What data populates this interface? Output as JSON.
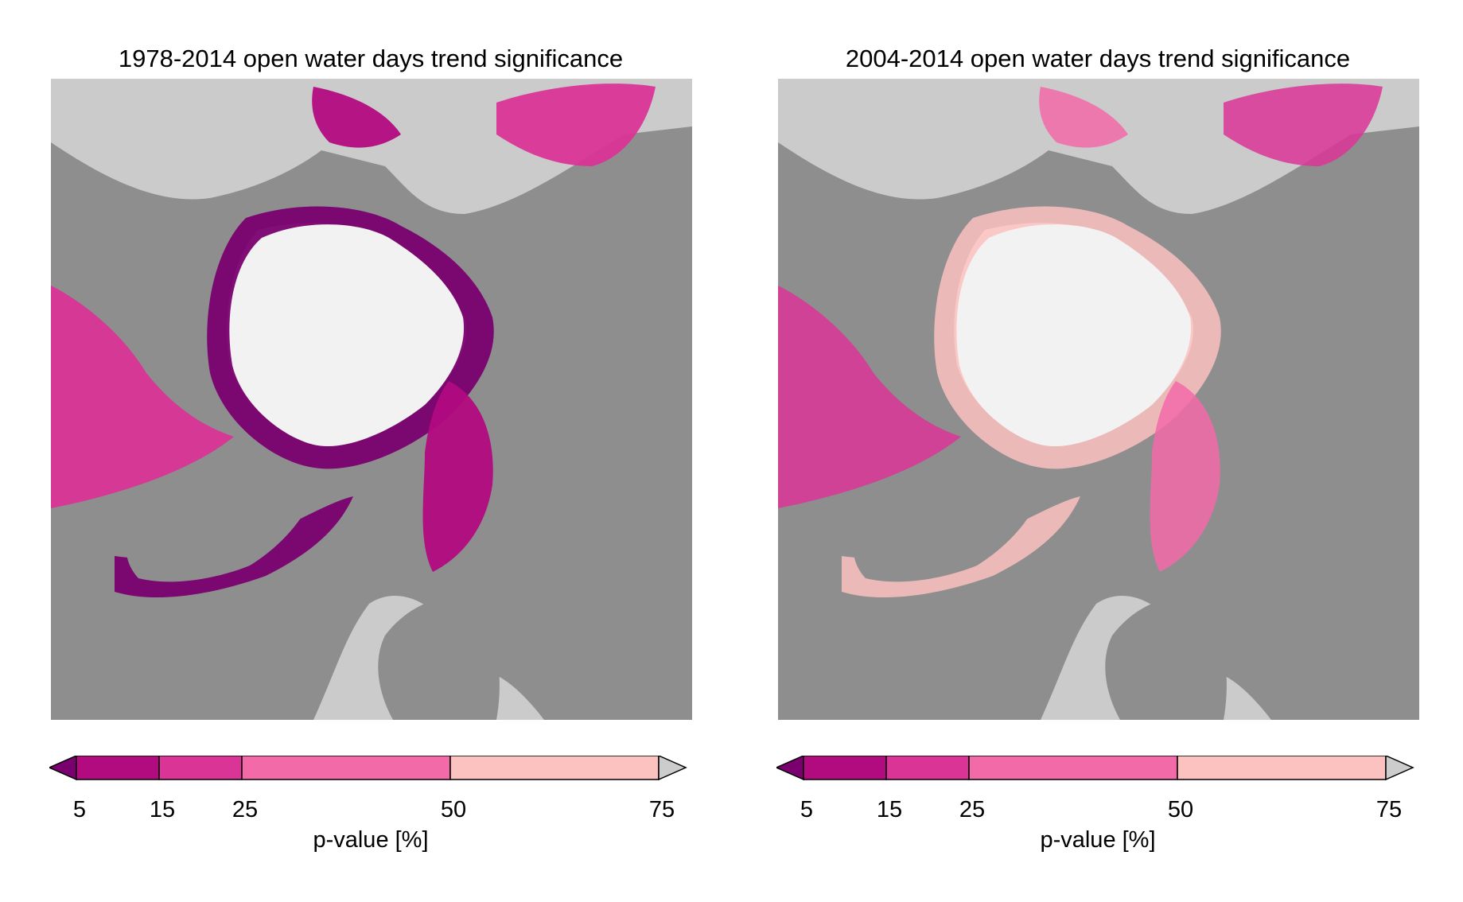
{
  "panels": [
    {
      "title": "1978-2014 open water days trend significance",
      "variant": "long",
      "colorbar": {
        "label": "p-value [%]",
        "ticks": [
          "5",
          "15",
          "25",
          "50",
          "75"
        ]
      }
    },
    {
      "title": "2004-2014 open water days trend significance",
      "variant": "short",
      "colorbar": {
        "label": "p-value [%]",
        "ticks": [
          "5",
          "15",
          "25",
          "50",
          "75"
        ]
      }
    }
  ],
  "colors": {
    "land": "#8e8e8e",
    "ocean_no_data": "#cbcbcb",
    "perennial_ice": "#f2f2f2",
    "bin_lt5": "#7a0070",
    "bin_5_15": "#b20a7f",
    "bin_15_25": "#da3596",
    "bin_25_50": "#f36aa8",
    "bin_50_75": "#fcc2c0",
    "bin_gt75": "#cccccc"
  },
  "colorbar_bounds": [
    5,
    15,
    25,
    50,
    75
  ]
}
